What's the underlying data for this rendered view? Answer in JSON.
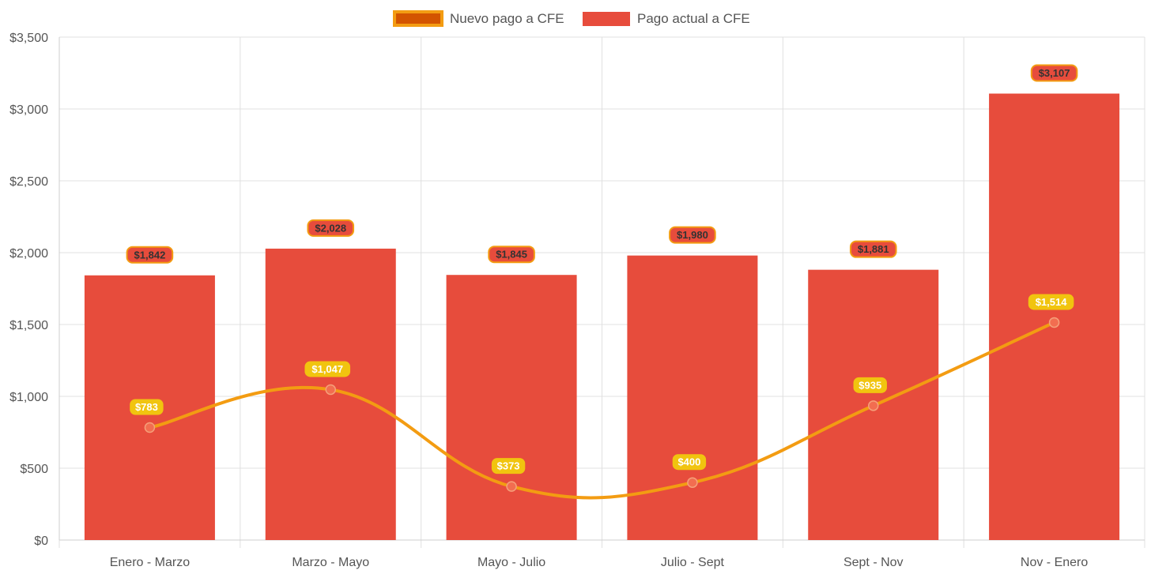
{
  "chart_data": {
    "type": "bar",
    "categories": [
      "Enero - Marzo",
      "Marzo - Mayo",
      "Mayo - Julio",
      "Julio - Sept",
      "Sept - Nov",
      "Nov - Enero"
    ],
    "ylim": [
      0,
      3500
    ],
    "yticks": [
      0,
      500,
      1000,
      1500,
      2000,
      2500,
      3000,
      3500
    ],
    "ytick_labels": [
      "$0",
      "$500",
      "$1,000",
      "$1,500",
      "$2,000",
      "$2,500",
      "$3,000",
      "$3,500"
    ],
    "grid": true,
    "legend_position": "top-center",
    "series": [
      {
        "name": "Nuevo pago a CFE",
        "type": "line",
        "color": "#f39c12",
        "point_color": "#f26d50",
        "legend_fill": "#d35400",
        "label_bg": "#f1c40f",
        "label_text": "#ffffff",
        "values": [
          783,
          1047,
          373,
          400,
          935,
          1514
        ],
        "labels": [
          "$783",
          "$1,047",
          "$373",
          "$400",
          "$935",
          "$1,514"
        ]
      },
      {
        "name": "Pago actual a CFE",
        "type": "bar",
        "color": "#e74c3c",
        "label_bg": "#e74c3c",
        "label_border": "#f39c12",
        "label_text": "#333333",
        "values": [
          1842,
          2028,
          1845,
          1980,
          1881,
          3107
        ],
        "labels": [
          "$1,842",
          "$2,028",
          "$1,845",
          "$1,980",
          "$1,881",
          "$3,107"
        ]
      }
    ]
  }
}
